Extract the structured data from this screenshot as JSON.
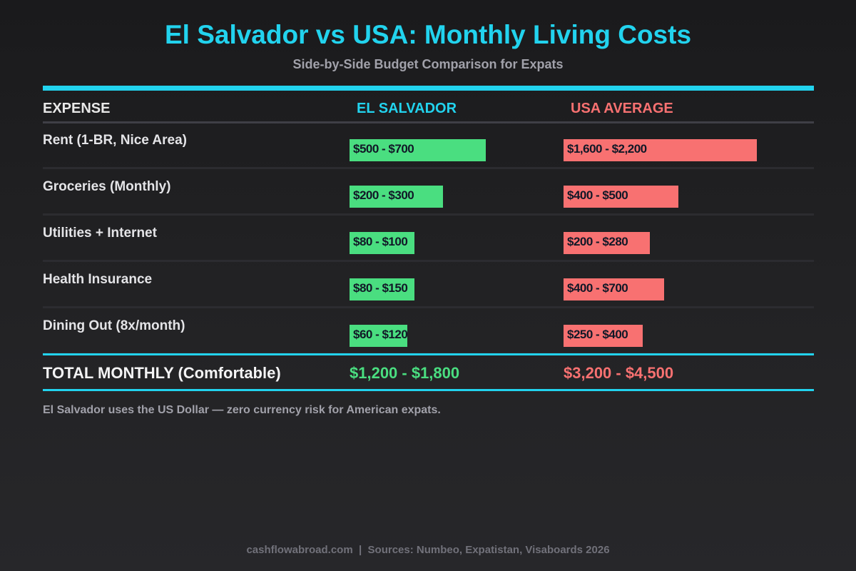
{
  "chart_data": {
    "type": "bar",
    "title": "El Salvador vs USA: Monthly Living Costs",
    "subtitle": "Side-by-Side Budget Comparison for Expats",
    "headers": {
      "expense": "EXPENSE",
      "el_salvador": "EL SALVADOR",
      "usa": "USA AVERAGE"
    },
    "rows": [
      {
        "expense": "Rent (1-BR, Nice Area)",
        "el_salvador": "$500 - $700",
        "es_fill": 0.637,
        "usa": "$1,600 - $2,200",
        "us_fill": 0.903
      },
      {
        "expense": "Groceries (Monthly)",
        "el_salvador": "$200 - $300",
        "es_fill": 0.437,
        "usa": "$400 - $500",
        "us_fill": 0.537
      },
      {
        "expense": "Utilities + Internet",
        "el_salvador": "$80 - $100",
        "es_fill": 0.303,
        "usa": "$200 - $280",
        "us_fill": 0.403
      },
      {
        "expense": "Health Insurance",
        "el_salvador": "$80 - $150",
        "es_fill": 0.303,
        "usa": "$400 - $700",
        "us_fill": 0.47
      },
      {
        "expense": "Dining Out (8x/month)",
        "el_salvador": "$60 - $120",
        "es_fill": 0.27,
        "usa": "$250 - $400",
        "us_fill": 0.37
      }
    ],
    "total": {
      "label": "TOTAL MONTHLY (Comfortable)",
      "el_salvador": "$1,200 - $1,800",
      "usa": "$3,200 - $4,500"
    },
    "colors": {
      "accent": "#22d3ee",
      "el_salvador": "#4ade80",
      "usa": "#f87171"
    }
  },
  "note": "El Salvador uses the US Dollar — zero currency risk for American expats.",
  "footer": "cashflowabroad.com  |  Sources: Numbeo, Expatistan, Visaboards 2026"
}
